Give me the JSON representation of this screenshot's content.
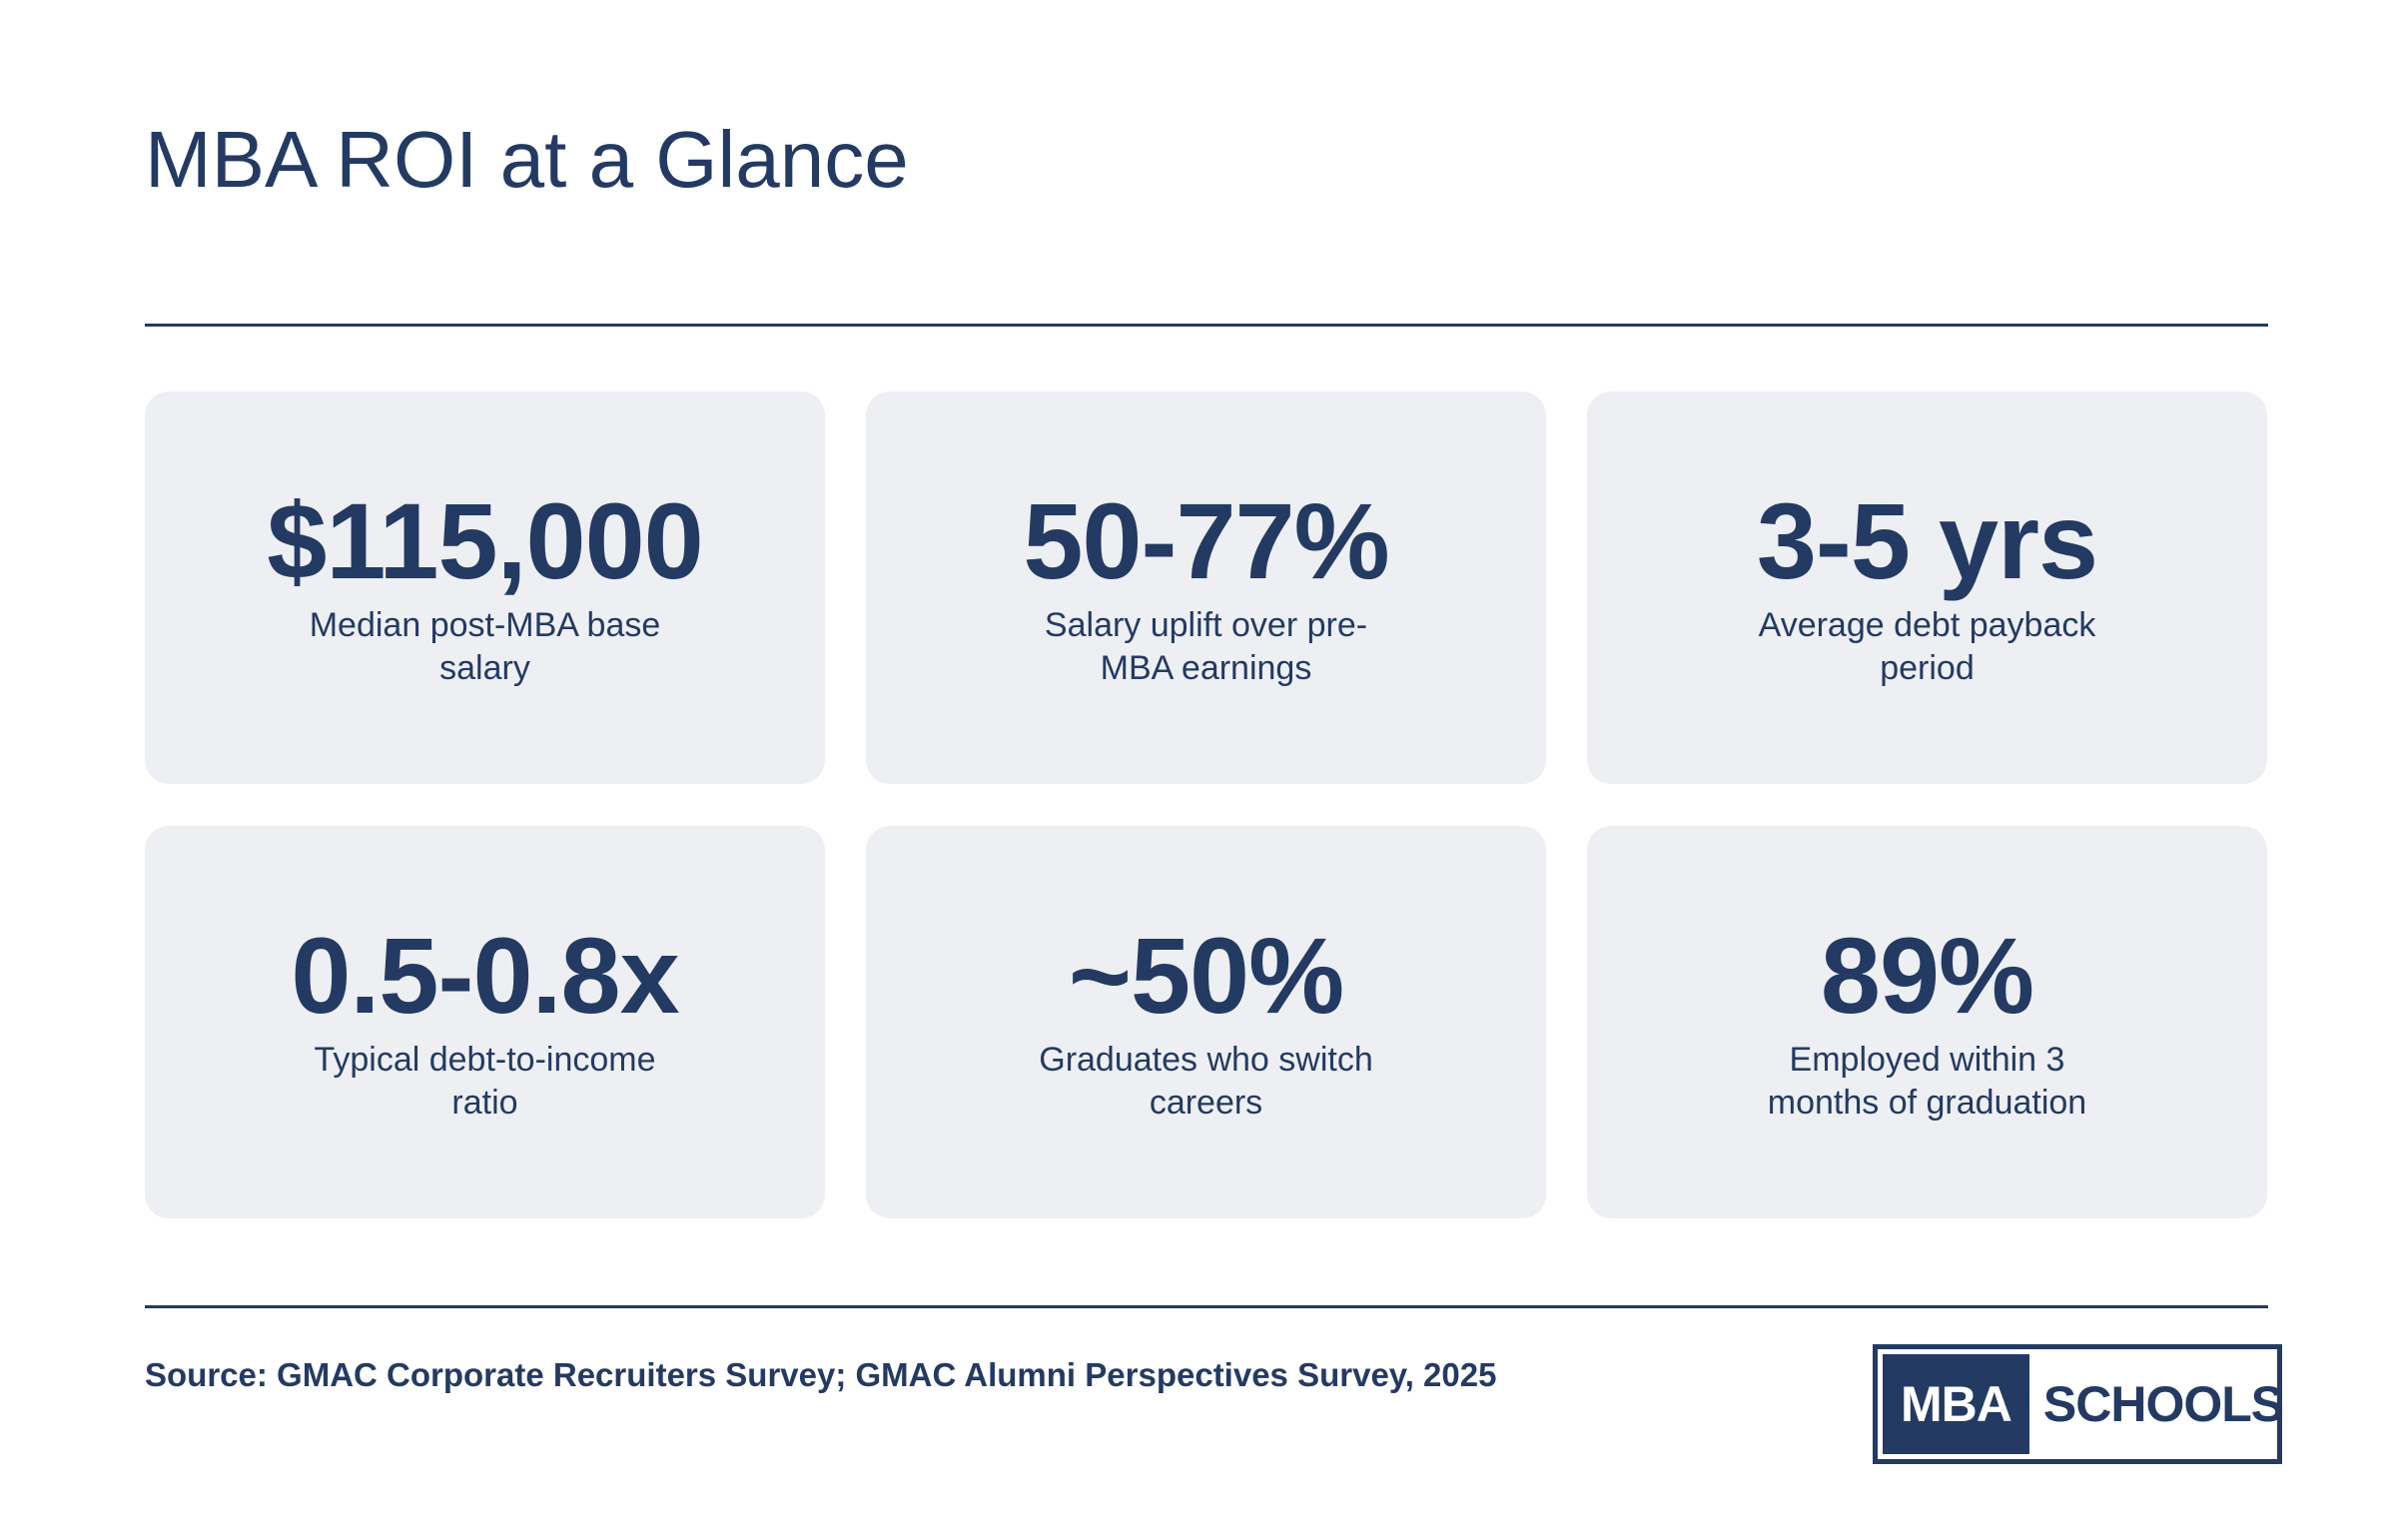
{
  "header": {
    "title": "MBA ROI at a Glance"
  },
  "stats": [
    {
      "value": "$115,000",
      "label": "Median post-MBA base salary"
    },
    {
      "value": "50-77%",
      "label": "Salary uplift over pre-MBA earnings"
    },
    {
      "value": "3-5 yrs",
      "label": "Average debt payback period"
    },
    {
      "value": "0.5-0.8x",
      "label": "Typical debt-to-income ratio"
    },
    {
      "value": "~50%",
      "label": "Graduates who switch careers"
    },
    {
      "value": "89%",
      "label": "Employed within 3 months of graduation"
    }
  ],
  "footer": {
    "source": "Source: GMAC Corporate Recruiters Survey; GMAC Alumni Perspectives Survey, 2025",
    "logo_left": "MBA",
    "logo_right": "SCHOOLS"
  },
  "colors": {
    "primary": "#233a63",
    "card_background": "#edeff2",
    "background": "#ffffff"
  }
}
